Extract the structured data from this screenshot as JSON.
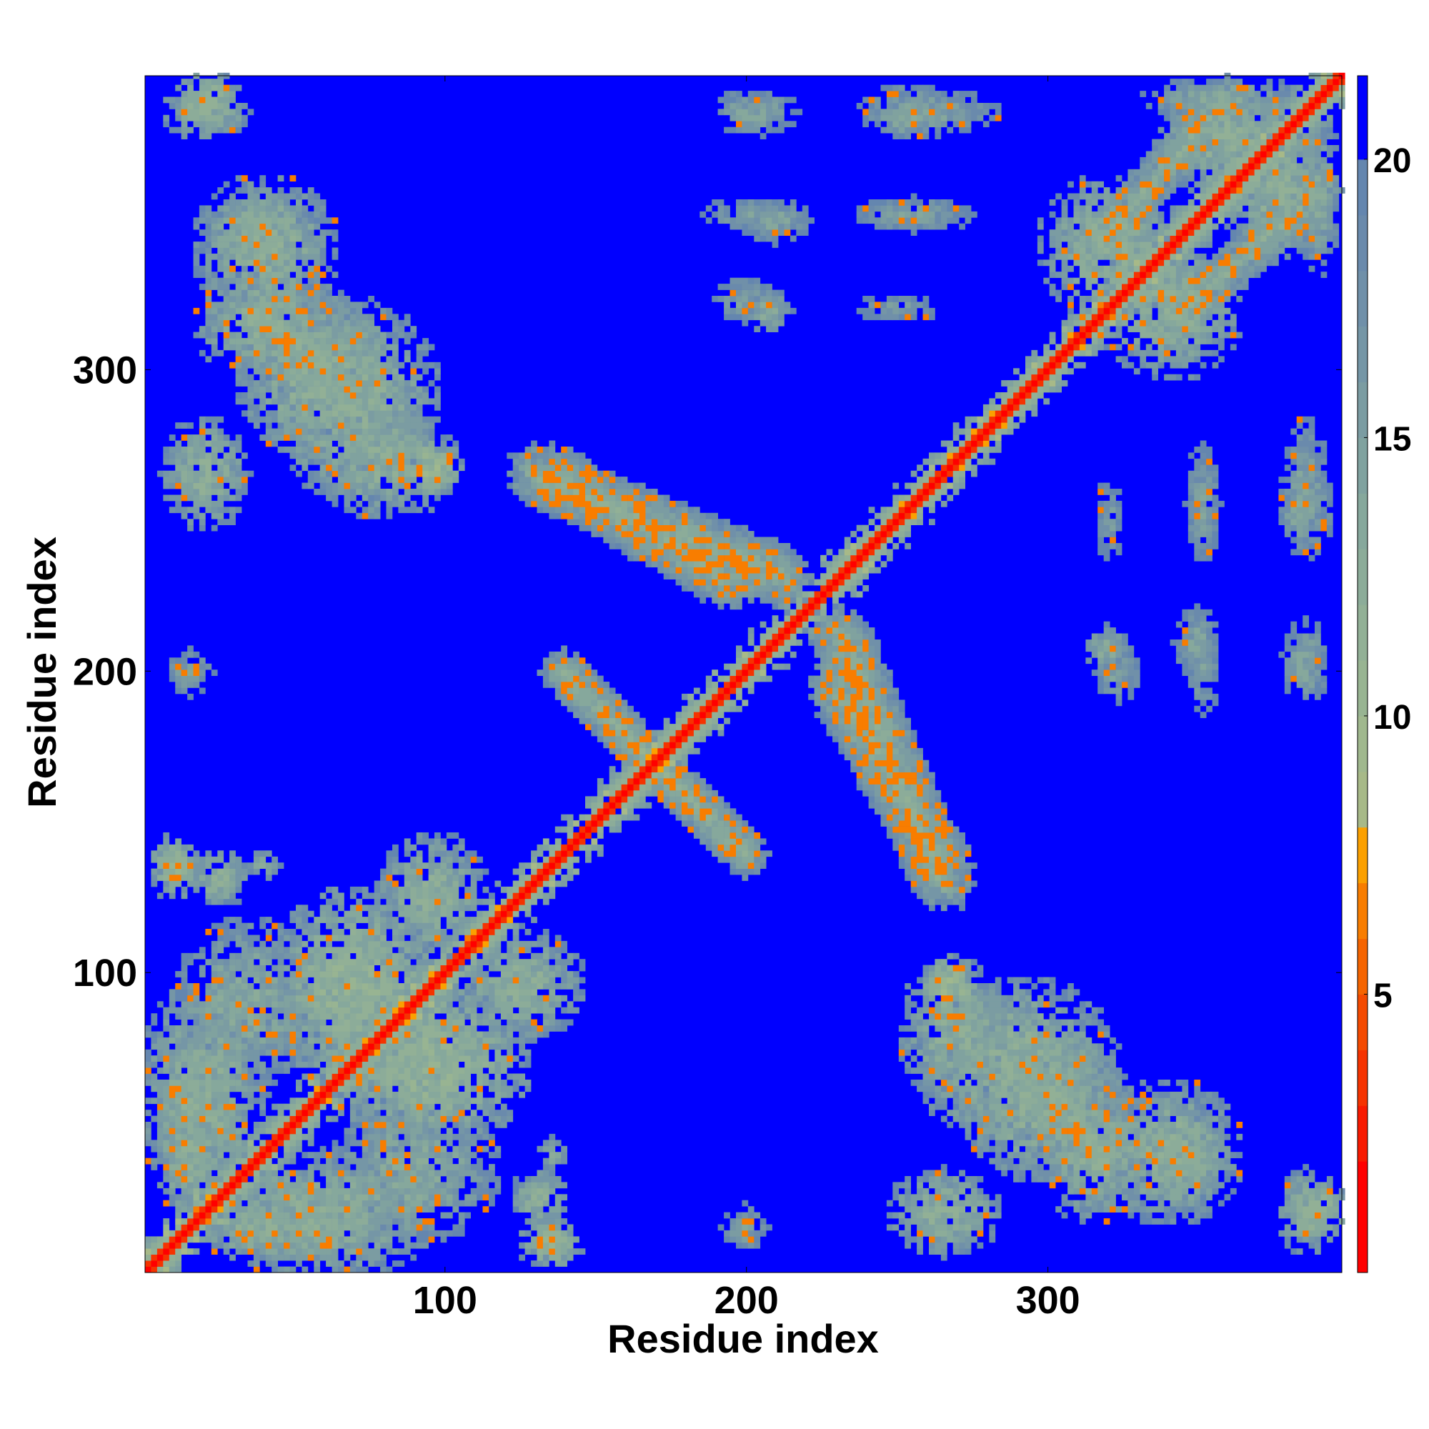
{
  "chart_data": {
    "type": "heatmap",
    "title": "",
    "xlabel": "Residue index",
    "ylabel": "Residue index",
    "xlim": [
      1,
      397
    ],
    "ylim": [
      1,
      397
    ],
    "x_ticks": [
      100,
      200,
      300
    ],
    "y_ticks": [
      100,
      200,
      300
    ],
    "colorbar": {
      "ticks": [
        5,
        10,
        15,
        20
      ],
      "range": [
        0,
        21.5
      ],
      "palette": [
        {
          "max": 2,
          "color": "#ff0000"
        },
        {
          "max": 3,
          "color": "#f81a00"
        },
        {
          "max": 4,
          "color": "#f53300"
        },
        {
          "max": 5,
          "color": "#f44a00"
        },
        {
          "max": 6,
          "color": "#f56400"
        },
        {
          "max": 7,
          "color": "#f87d00"
        },
        {
          "max": 8,
          "color": "#fba000"
        },
        {
          "max": 9,
          "color": "#a7b988"
        },
        {
          "max": 10,
          "color": "#a0b88e"
        },
        {
          "max": 11,
          "color": "#98b492"
        },
        {
          "max": 12,
          "color": "#92b096"
        },
        {
          "max": 13,
          "color": "#8cac99"
        },
        {
          "max": 14,
          "color": "#86a89c"
        },
        {
          "max": 15,
          "color": "#80a29f"
        },
        {
          "max": 16,
          "color": "#7b9ca2"
        },
        {
          "max": 17,
          "color": "#7596a6"
        },
        {
          "max": 18,
          "color": "#7090a9"
        },
        {
          "max": 19,
          "color": "#6a8aac"
        },
        {
          "max": 20,
          "color": "#6486af"
        },
        {
          "max": 21.5,
          "color": "#0000ff"
        }
      ]
    },
    "background_value": 21.5,
    "symmetric": true,
    "features": [
      {
        "kind": "diagonal",
        "from": 1,
        "to": 397,
        "value": 4
      },
      {
        "kind": "band",
        "from": [
          1,
          1
        ],
        "to": [
          397,
          397
        ],
        "halfwidth": 6,
        "value": 9
      },
      {
        "kind": "blob",
        "i": 60,
        "j": 20,
        "ri": 40,
        "rj": 22,
        "value": 13
      },
      {
        "kind": "blob",
        "i": 90,
        "j": 35,
        "ri": 30,
        "rj": 25,
        "value": 14
      },
      {
        "kind": "blob",
        "i": 95,
        "j": 70,
        "ri": 35,
        "rj": 30,
        "value": 12
      },
      {
        "kind": "blob",
        "i": 125,
        "j": 95,
        "ri": 22,
        "rj": 20,
        "value": 13
      },
      {
        "kind": "blob",
        "i": 40,
        "j": 15,
        "ri": 25,
        "rj": 12,
        "value": 13
      },
      {
        "kind": "line",
        "from": [
          30,
          45
        ],
        "to": [
          10,
          60
        ],
        "halfwidth": 5,
        "value": 12
      },
      {
        "kind": "blob",
        "i": 135,
        "j": 12,
        "ri": 8,
        "rj": 8,
        "value": 12
      },
      {
        "kind": "blob",
        "i": 135,
        "j": 40,
        "ri": 6,
        "rj": 6,
        "value": 14
      },
      {
        "kind": "blob",
        "i": 25,
        "j": 132,
        "ri": 10,
        "rj": 10,
        "value": 13
      },
      {
        "kind": "blob",
        "i": 10,
        "j": 135,
        "ri": 8,
        "rj": 12,
        "value": 12
      },
      {
        "kind": "blob",
        "i": 15,
        "j": 200,
        "ri": 8,
        "rj": 8,
        "value": 15
      },
      {
        "kind": "line",
        "from": [
          200,
          140
        ],
        "to": [
          140,
          200
        ],
        "halfwidth": 8,
        "value": 13
      },
      {
        "kind": "line",
        "from": [
          195,
          230
        ],
        "to": [
          135,
          265
        ],
        "halfwidth": 10,
        "value": 13
      },
      {
        "kind": "line",
        "from": [
          265,
          130
        ],
        "to": [
          230,
          215
        ],
        "halfwidth": 10,
        "value": 13
      },
      {
        "kind": "blob",
        "i": 95,
        "j": 268,
        "ri": 10,
        "rj": 10,
        "value": 11
      },
      {
        "kind": "blob",
        "i": 70,
        "j": 290,
        "ri": 30,
        "rj": 35,
        "value": 13
      },
      {
        "kind": "blob",
        "i": 40,
        "j": 315,
        "ri": 25,
        "rj": 20,
        "value": 13
      },
      {
        "kind": "blob",
        "i": 20,
        "j": 265,
        "ri": 15,
        "rj": 20,
        "value": 13
      },
      {
        "kind": "blob",
        "i": 40,
        "j": 345,
        "ri": 20,
        "rj": 12,
        "value": 14
      },
      {
        "kind": "blob",
        "i": 20,
        "j": 385,
        "ri": 15,
        "rj": 10,
        "value": 13
      },
      {
        "kind": "line",
        "from": [
          60,
          300
        ],
        "to": [
          35,
          320
        ],
        "halfwidth": 5,
        "value": 11
      },
      {
        "kind": "blob",
        "i": 390,
        "j": 22,
        "ri": 10,
        "rj": 12,
        "value": 12
      },
      {
        "kind": "blob",
        "i": 340,
        "j": 40,
        "ri": 25,
        "rj": 25,
        "value": 13
      },
      {
        "kind": "blob",
        "i": 300,
        "j": 55,
        "ri": 30,
        "rj": 25,
        "value": 13
      },
      {
        "kind": "blob",
        "i": 270,
        "j": 80,
        "ri": 20,
        "rj": 25,
        "value": 13
      },
      {
        "kind": "line",
        "from": [
          345,
          320
        ],
        "to": [
          390,
          360
        ],
        "halfwidth": 8,
        "value": 13
      },
      {
        "kind": "blob",
        "i": 320,
        "j": 340,
        "ri": 25,
        "rj": 25,
        "value": 13
      },
      {
        "kind": "blob",
        "i": 360,
        "j": 375,
        "ri": 25,
        "rj": 20,
        "value": 13
      },
      {
        "kind": "blob",
        "i": 390,
        "j": 360,
        "ri": 8,
        "rj": 30,
        "value": 14
      },
      {
        "kind": "blob",
        "i": 200,
        "j": 323,
        "ri": 10,
        "rj": 8,
        "value": 15
      },
      {
        "kind": "blob",
        "i": 200,
        "j": 352,
        "ri": 15,
        "rj": 6,
        "value": 15
      },
      {
        "kind": "blob",
        "i": 200,
        "j": 385,
        "ri": 10,
        "rj": 8,
        "value": 15
      },
      {
        "kind": "blob",
        "i": 255,
        "j": 352,
        "ri": 20,
        "rj": 6,
        "value": 15
      },
      {
        "kind": "blob",
        "i": 255,
        "j": 385,
        "ri": 15,
        "rj": 10,
        "value": 14
      },
      {
        "kind": "blob",
        "i": 385,
        "j": 205,
        "ri": 8,
        "rj": 12,
        "value": 15
      },
      {
        "kind": "blob",
        "i": 350,
        "j": 210,
        "ri": 8,
        "rj": 12,
        "value": 15
      },
      {
        "kind": "blob",
        "i": 320,
        "j": 208,
        "ri": 8,
        "rj": 8,
        "value": 14
      },
      {
        "kind": "blob",
        "i": 385,
        "j": 260,
        "ri": 8,
        "rj": 25,
        "value": 15
      },
      {
        "kind": "blob",
        "i": 350,
        "j": 255,
        "ri": 5,
        "rj": 22,
        "value": 16
      },
      {
        "kind": "blob",
        "i": 320,
        "j": 250,
        "ri": 5,
        "rj": 15,
        "value": 16
      }
    ]
  }
}
